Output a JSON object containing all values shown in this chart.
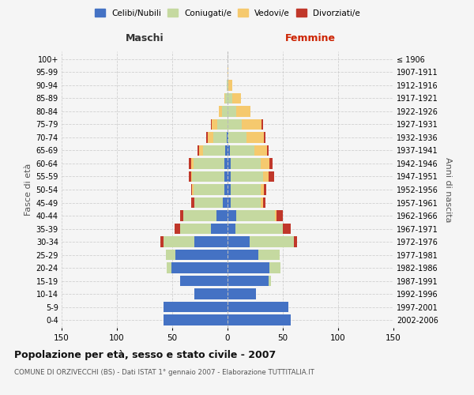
{
  "age_groups": [
    "0-4",
    "5-9",
    "10-14",
    "15-19",
    "20-24",
    "25-29",
    "30-34",
    "35-39",
    "40-44",
    "45-49",
    "50-54",
    "55-59",
    "60-64",
    "65-69",
    "70-74",
    "75-79",
    "80-84",
    "85-89",
    "90-94",
    "95-99",
    "100+"
  ],
  "birth_years": [
    "2002-2006",
    "1997-2001",
    "1992-1996",
    "1987-1991",
    "1982-1986",
    "1977-1981",
    "1972-1976",
    "1967-1971",
    "1962-1966",
    "1957-1961",
    "1952-1956",
    "1947-1951",
    "1942-1946",
    "1937-1941",
    "1932-1936",
    "1927-1931",
    "1922-1926",
    "1917-1921",
    "1912-1916",
    "1907-1911",
    "≤ 1906"
  ],
  "male": {
    "celibi": [
      58,
      58,
      30,
      43,
      51,
      47,
      30,
      15,
      10,
      4,
      3,
      3,
      3,
      2,
      1,
      0,
      0,
      0,
      0,
      0,
      0
    ],
    "coniugati": [
      0,
      0,
      0,
      0,
      4,
      9,
      28,
      28,
      30,
      26,
      28,
      29,
      28,
      20,
      12,
      9,
      5,
      2,
      1,
      0,
      0
    ],
    "vedovi": [
      0,
      0,
      0,
      0,
      0,
      0,
      0,
      0,
      0,
      0,
      1,
      1,
      2,
      4,
      5,
      5,
      3,
      1,
      0,
      0,
      0
    ],
    "divorziati": [
      0,
      0,
      0,
      0,
      0,
      0,
      3,
      5,
      3,
      3,
      1,
      2,
      2,
      1,
      1,
      1,
      0,
      0,
      0,
      0,
      0
    ]
  },
  "female": {
    "nubili": [
      57,
      55,
      26,
      37,
      38,
      28,
      20,
      7,
      8,
      3,
      3,
      3,
      3,
      2,
      1,
      0,
      0,
      0,
      0,
      0,
      0
    ],
    "coniugate": [
      0,
      0,
      0,
      2,
      10,
      19,
      40,
      43,
      35,
      27,
      27,
      29,
      27,
      22,
      16,
      13,
      8,
      4,
      1,
      0,
      0
    ],
    "vedove": [
      0,
      0,
      0,
      0,
      0,
      0,
      0,
      0,
      1,
      2,
      3,
      5,
      8,
      12,
      16,
      18,
      13,
      8,
      3,
      1,
      0
    ],
    "divorziate": [
      0,
      0,
      0,
      0,
      0,
      0,
      3,
      7,
      6,
      2,
      2,
      5,
      3,
      1,
      1,
      1,
      0,
      0,
      0,
      0,
      0
    ]
  },
  "color_celibi": "#4472c4",
  "color_coniugati": "#c5d9a0",
  "color_vedovi": "#f5c96e",
  "color_divorziati": "#c0372a",
  "title": "Popolazione per età, sesso e stato civile - 2007",
  "subtitle": "COMUNE DI ORZIVECCHI (BS) - Dati ISTAT 1° gennaio 2007 - Elaborazione TUTTITALIA.IT",
  "xlabel_left": "Maschi",
  "xlabel_right": "Femmine",
  "ylabel_left": "Fasce di età",
  "ylabel_right": "Anni di nascita",
  "xlim": 150,
  "background_color": "#f5f5f5",
  "grid_color": "#cccccc"
}
